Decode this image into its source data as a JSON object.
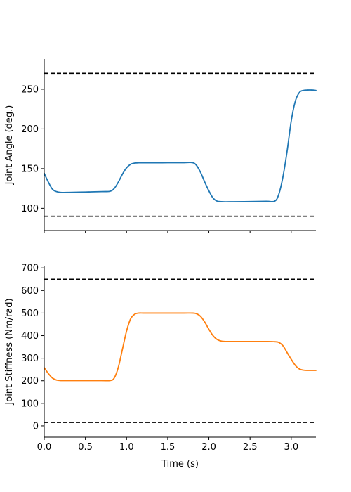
{
  "chart_data": [
    {
      "type": "line",
      "xlabel": "",
      "ylabel": "Joint Angle (deg.)",
      "xlim": [
        0,
        3.3
      ],
      "ylim": [
        72,
        288
      ],
      "yticks": [
        100,
        150,
        200,
        250
      ],
      "xticks": [
        0.0,
        0.5,
        1.0,
        1.5,
        2.0,
        2.5,
        3.0
      ],
      "x_tick_labels_visible": false,
      "grid": false,
      "series": [
        {
          "color": "#1f77b4",
          "x": [
            0.0,
            0.05,
            0.1,
            0.15,
            0.2,
            0.3,
            0.5,
            0.7,
            0.8,
            0.85,
            0.9,
            0.95,
            1.0,
            1.05,
            1.1,
            1.15,
            1.2,
            1.3,
            1.5,
            1.7,
            1.8,
            1.85,
            1.9,
            1.95,
            2.0,
            2.05,
            2.1,
            2.15,
            2.2,
            2.3,
            2.5,
            2.7,
            2.8,
            2.85,
            2.9,
            2.95,
            3.0,
            3.05,
            3.1,
            3.15,
            3.2,
            3.25,
            3.3
          ],
          "y": [
            144,
            133,
            124,
            121,
            120,
            120,
            120.5,
            121,
            121.5,
            125,
            133,
            143,
            151,
            155.5,
            157,
            157.3,
            157.3,
            157.3,
            157.4,
            157.5,
            157.5,
            154,
            145,
            133,
            122,
            113,
            109,
            108.4,
            108.2,
            108.3,
            108.5,
            108.8,
            109,
            118,
            140,
            172,
            210,
            235,
            246,
            248.5,
            249,
            249,
            248.5
          ]
        }
      ],
      "hlines": [
        {
          "y": 270,
          "style": "dashed",
          "color": "#000000"
        },
        {
          "y": 90,
          "style": "dashed",
          "color": "#000000"
        }
      ]
    },
    {
      "type": "line",
      "xlabel": "Time (s)",
      "ylabel": "Joint Stiffness (Nm/rad)",
      "xlim": [
        0,
        3.3
      ],
      "ylim": [
        -50,
        710
      ],
      "yticks": [
        0,
        100,
        200,
        300,
        400,
        500,
        600,
        700
      ],
      "xticks": [
        0.0,
        0.5,
        1.0,
        1.5,
        2.0,
        2.5,
        3.0
      ],
      "xtick_labels": [
        "0.0",
        "0.5",
        "1.0",
        "1.5",
        "2.0",
        "2.5",
        "3.0"
      ],
      "grid": false,
      "series": [
        {
          "color": "#ff7f0e",
          "x": [
            0.0,
            0.05,
            0.1,
            0.15,
            0.2,
            0.3,
            0.5,
            0.7,
            0.8,
            0.85,
            0.9,
            0.95,
            1.0,
            1.05,
            1.1,
            1.15,
            1.2,
            1.3,
            1.5,
            1.7,
            1.8,
            1.85,
            1.9,
            1.95,
            2.0,
            2.05,
            2.1,
            2.15,
            2.2,
            2.3,
            2.5,
            2.7,
            2.8,
            2.85,
            2.9,
            2.95,
            3.0,
            3.05,
            3.1,
            3.15,
            3.2,
            3.25,
            3.3
          ],
          "y": [
            258,
            232,
            212,
            203,
            201,
            201,
            201,
            201,
            201,
            212,
            260,
            340,
            420,
            475,
            495,
            500,
            500,
            500,
            500,
            500,
            500,
            497,
            485,
            460,
            428,
            400,
            383,
            376,
            374,
            374,
            374,
            374,
            373,
            370,
            355,
            325,
            295,
            268,
            252,
            247,
            246,
            246,
            246
          ]
        }
      ],
      "hlines": [
        {
          "y": 650,
          "style": "dashed",
          "color": "#000000"
        },
        {
          "y": 15,
          "style": "dashed",
          "color": "#000000"
        }
      ]
    }
  ]
}
